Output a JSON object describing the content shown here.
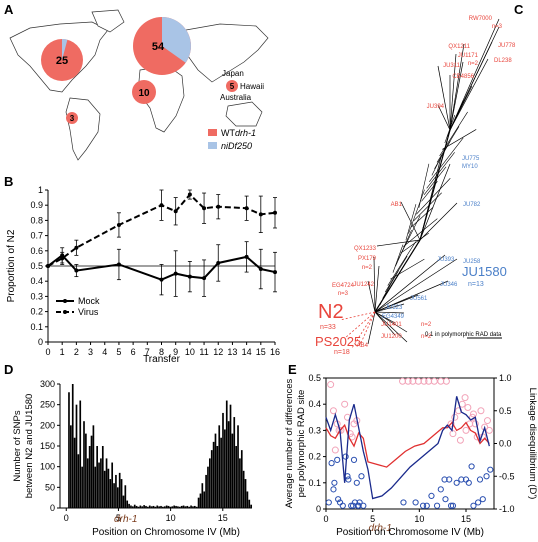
{
  "panels": {
    "a": "A",
    "b": "B",
    "c": "C",
    "d": "D",
    "e": "E"
  },
  "colors": {
    "wt": "#ef6b62",
    "niDf250": "#a9c4e6",
    "red_text": "#e8453c",
    "blue_text": "#4a7fc8",
    "pink": "#f2a3b8",
    "navy": "#1a2a8c",
    "open_blue": "#2a4fb0"
  },
  "map": {
    "circles": [
      {
        "label": "25",
        "wt": 23,
        "nidf": 2
      },
      {
        "label": "54",
        "wt": 30,
        "nidf": 24
      },
      {
        "label": "10",
        "wt": 10,
        "nidf": 0
      },
      {
        "label": "3",
        "wt": 3,
        "nidf": 0
      },
      {
        "label": "5",
        "wt": 5,
        "nidf": 0
      }
    ],
    "places": [
      "Japan",
      "Hawaii",
      "Australia"
    ],
    "legend": [
      {
        "prefix": "WT",
        "italic": "drh-1"
      },
      {
        "prefix": "",
        "italic": "niDf250"
      }
    ]
  },
  "chart_data": [
    {
      "type": "line",
      "panel": "B",
      "xlabel": "Transfer",
      "ylabel": "Proportion of N2",
      "ylim": [
        0,
        1
      ],
      "yticks": [
        "0",
        "0.1",
        "0.2",
        "0.3",
        "0.4",
        "0.5",
        "0.6",
        "0.7",
        "0.8",
        "0.9",
        "1"
      ],
      "xticks": [
        "0",
        "1",
        "2",
        "3",
        "4",
        "5",
        "6",
        "7",
        "8",
        "9",
        "10",
        "11",
        "12",
        "13",
        "14",
        "15",
        "16"
      ],
      "reference_line": 0.5,
      "series": [
        {
          "name": "Mock",
          "style": "solid",
          "x": [
            0,
            1,
            2,
            5,
            8,
            9,
            10,
            11,
            12,
            14,
            15,
            16
          ],
          "y": [
            0.5,
            0.57,
            0.47,
            0.51,
            0.41,
            0.45,
            0.43,
            0.42,
            0.52,
            0.56,
            0.48,
            0.46
          ],
          "err": [
            0,
            0.05,
            0.04,
            0.1,
            0.1,
            0.15,
            0.1,
            0.12,
            0.12,
            0.1,
            0.13,
            0.13
          ]
        },
        {
          "name": "Virus",
          "style": "dashed",
          "x": [
            0,
            1,
            2,
            5,
            8,
            9,
            10,
            11,
            12,
            14,
            15,
            16
          ],
          "y": [
            0.5,
            0.55,
            0.62,
            0.77,
            0.9,
            0.86,
            0.97,
            0.88,
            0.89,
            0.88,
            0.84,
            0.85
          ],
          "err": [
            0,
            0.04,
            0.05,
            0.08,
            0.1,
            0.09,
            0.03,
            0.1,
            0.08,
            0.08,
            0.12,
            0.1
          ]
        }
      ]
    },
    {
      "type": "bar",
      "panel": "D",
      "xlabel": "Position on Chromosome IV (Mb)",
      "ylabel_lines": [
        "Number of SNPs",
        "between N2 and JU1580"
      ],
      "ylim": [
        0,
        300
      ],
      "yticks": [
        "0",
        "50",
        "100",
        "150",
        "200",
        "250",
        "300"
      ],
      "xticks": [
        "0",
        "5",
        "10",
        "15"
      ],
      "xlim": [
        -0.6,
        17.8
      ],
      "gene_label": "drh-1",
      "gene_pos": 5.7,
      "bin_width": 0.18,
      "values": [
        0,
        280,
        200,
        300,
        170,
        250,
        130,
        260,
        100,
        210,
        180,
        120,
        150,
        175,
        200,
        100,
        150,
        110,
        120,
        150,
        90,
        120,
        95,
        70,
        110,
        60,
        80,
        50,
        85,
        70,
        30,
        55,
        18,
        10,
        6,
        4,
        8,
        5,
        3,
        6,
        4,
        7,
        5,
        3,
        6,
        4,
        5,
        3,
        6,
        4,
        5,
        3,
        4,
        6,
        5,
        3,
        4,
        6,
        5,
        4,
        3,
        5,
        6,
        4,
        5,
        3,
        6,
        4,
        5,
        3,
        25,
        35,
        60,
        40,
        80,
        100,
        120,
        140,
        160,
        180,
        150,
        200,
        170,
        230,
        190,
        260,
        210,
        250,
        180,
        220,
        150,
        200,
        120,
        140,
        90,
        70,
        40,
        20,
        8
      ]
    },
    {
      "type": "scatter",
      "panel": "E",
      "xlabel": "Position on Chromosome IV (Mb)",
      "ylabel_left_lines": [
        "Average number of differences",
        "per polymorphic RAD site"
      ],
      "ylabel_right": "Linkage disequilibrium (D')",
      "ylim_left": [
        0,
        0.5
      ],
      "ylim_right": [
        -1,
        1
      ],
      "yticks_left": [
        "0",
        "0.1",
        "0.2",
        "0.3",
        "0.4",
        "0.5"
      ],
      "yticks_right": [
        "-1.0",
        "-0.5",
        "0.0",
        "0.5",
        "1.0"
      ],
      "xticks": [
        "0",
        "5",
        "10",
        "15"
      ],
      "xlim": [
        0,
        18
      ],
      "gene_label": "drh-1",
      "gene_pos": 5.8,
      "series": [
        {
          "name": "pink",
          "x": [
            0.5,
            0.8,
            1.2,
            1.6,
            2.0,
            2.3,
            2.6,
            3.0,
            1.0,
            1.4,
            2.8,
            3.3,
            8.2,
            8.8,
            9.3,
            9.9,
            10.5,
            11.0,
            11.6,
            12.3,
            12.9,
            13.4,
            13.8,
            14.2,
            14.6,
            15.0,
            15.4,
            15.8,
            16.2,
            16.6,
            17.0,
            17.3,
            13.6,
            14.4,
            15.2,
            16.0,
            16.8,
            17.5,
            14.9,
            15.7
          ],
          "y": [
            0.9,
            0.5,
            0.3,
            0.2,
            0.6,
            0.4,
            0.15,
            0.3,
            -0.1,
            0.2,
            0.1,
            0.35,
            0.95,
            0.95,
            0.95,
            0.95,
            0.95,
            0.95,
            0.95,
            0.95,
            0.95,
            0.3,
            0.4,
            0.5,
            0.6,
            0.2,
            0.3,
            0.45,
            0.1,
            0.5,
            0.25,
            0.35,
            0.15,
            0.05,
            0.55,
            0.3,
            0.1,
            0.2,
            0.7,
            0.4
          ]
        },
        {
          "name": "blue",
          "x": [
            0.3,
            0.6,
            0.9,
            1.2,
            1.5,
            1.8,
            2.1,
            2.4,
            2.7,
            3.0,
            3.3,
            3.6,
            0.8,
            1.3,
            2.3,
            2.9,
            3.5,
            3.8,
            3.1,
            3.4,
            4.0,
            8.3,
            9.6,
            10.4,
            10.8,
            11.3,
            11.9,
            12.3,
            12.7,
            13.2,
            13.6,
            14.0,
            14.5,
            15.0,
            15.3,
            15.8,
            16.3,
            16.8,
            17.2,
            17.6,
            12.8,
            13.4,
            15.6,
            16.5
          ],
          "y": [
            -0.9,
            -0.3,
            -0.6,
            -0.25,
            -0.9,
            -0.95,
            -0.2,
            -0.55,
            -0.95,
            -0.25,
            -0.6,
            -0.9,
            -0.7,
            -0.85,
            -0.5,
            -0.95,
            -0.95,
            -0.5,
            -0.9,
            -0.95,
            -0.95,
            -0.9,
            -0.9,
            -0.95,
            -0.95,
            -0.8,
            -0.95,
            -0.7,
            -0.55,
            -0.55,
            -0.95,
            -0.6,
            -0.55,
            -0.55,
            -0.6,
            -0.95,
            -0.9,
            -0.85,
            -0.5,
            -0.4,
            -0.85,
            -0.95,
            -0.35,
            -0.55
          ]
        },
        {
          "name": "red_line",
          "x": [
            0,
            0.5,
            1.0,
            1.5,
            2.0,
            2.5,
            3.0,
            3.5,
            4.0,
            4.5,
            5.5,
            6.5,
            7.5,
            8.5,
            9.5,
            10.5,
            11.5,
            12.5,
            13.0,
            13.5,
            14.0,
            14.5,
            15.0,
            15.5,
            16.0,
            16.5,
            17.0,
            17.5
          ],
          "y": [
            0.31,
            0.28,
            0.27,
            0.3,
            0.32,
            0.27,
            0.24,
            0.29,
            0.27,
            0.18,
            0.17,
            0.16,
            0.19,
            0.22,
            0.24,
            0.25,
            0.28,
            0.31,
            0.31,
            0.33,
            0.3,
            0.31,
            0.33,
            0.3,
            0.29,
            0.25,
            0.27,
            0.25
          ]
        },
        {
          "name": "navy_line",
          "x": [
            0,
            0.5,
            1.0,
            1.5,
            2.0,
            2.5,
            3.0,
            3.5,
            4.0,
            4.5,
            5.0,
            6.0,
            7.0,
            8.0,
            9.0,
            10.0,
            11.0,
            12.0,
            12.5,
            13.0,
            13.5,
            14.0,
            14.5,
            15.0,
            15.5,
            16.0,
            16.5,
            17.0,
            17.5
          ],
          "y": [
            0.35,
            0.3,
            0.36,
            0.3,
            0.1,
            0.34,
            0.4,
            0.31,
            0.22,
            0.15,
            0.04,
            0.05,
            0.08,
            0.12,
            0.16,
            0.19,
            0.22,
            0.25,
            0.3,
            0.32,
            0.3,
            0.43,
            0.37,
            0.36,
            0.34,
            0.35,
            0.26,
            0.31,
            0.24
          ]
        }
      ]
    }
  ],
  "tree": {
    "red_labels": [
      "RW7000",
      "n=3",
      "QX1211",
      "JU778",
      "JU1171",
      "n=2",
      "JU311",
      "DL238",
      "CB4856",
      "JU394",
      "AB1",
      "QX1233",
      "PX179",
      "n=2",
      "JU1242",
      "EG4724",
      "n=3",
      "JU1401",
      "n=2",
      "JU1200",
      "n=2",
      "AB4"
    ],
    "blue_labels": [
      "JU775",
      "MY10",
      "JU782",
      "JU393",
      "JU258",
      "JU346",
      "JU561",
      "JU323",
      "EG4349"
    ],
    "big_red": {
      "name": "N2",
      "n": "n=33"
    },
    "big_red2": {
      "name": "PS2025",
      "n": "n=18"
    },
    "big_blue": {
      "name": "JU1580",
      "n": "n=13"
    },
    "scale": "0.1 in polymorphic RAD data"
  }
}
